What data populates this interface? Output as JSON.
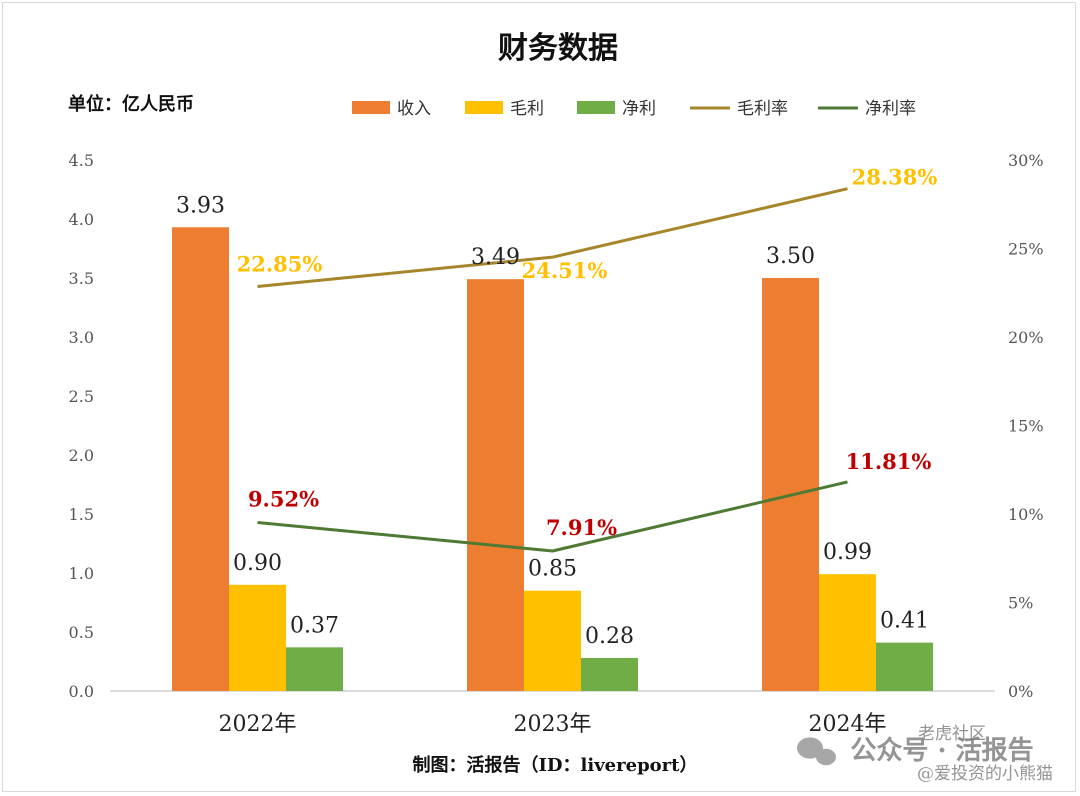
{
  "chart_data": {
    "type": "bar",
    "title": "财务数据",
    "unit_label": "单位：亿人民币",
    "categories": [
      "2022年",
      "2023年",
      "2024年"
    ],
    "y_left": {
      "min": 0,
      "max": 4.5,
      "step": 0.5,
      "ticks": [
        "0.0",
        "0.5",
        "1.0",
        "1.5",
        "2.0",
        "2.5",
        "3.0",
        "3.5",
        "4.0",
        "4.5"
      ]
    },
    "y_right": {
      "min": 0,
      "max": 30,
      "step": 5,
      "ticks": [
        "0%",
        "5%",
        "10%",
        "15%",
        "20%",
        "25%",
        "30%"
      ]
    },
    "bar_series": [
      {
        "name": "收入",
        "values": [
          3.93,
          3.49,
          3.5
        ],
        "labels": [
          "3.93",
          "3.49",
          "3.50"
        ],
        "color": "#ED7D31"
      },
      {
        "name": "毛利",
        "values": [
          0.9,
          0.85,
          0.99
        ],
        "labels": [
          "0.90",
          "0.85",
          "0.99"
        ],
        "color": "#FFC000"
      },
      {
        "name": "净利",
        "values": [
          0.37,
          0.28,
          0.41
        ],
        "labels": [
          "0.37",
          "0.28",
          "0.41"
        ],
        "color": "#70AD47"
      }
    ],
    "line_series": [
      {
        "name": "毛利率",
        "values": [
          22.85,
          24.51,
          28.38
        ],
        "labels": [
          "22.85%",
          "24.51%",
          "28.38%"
        ],
        "color": "#A5862A",
        "label_color": "#FFC000"
      },
      {
        "name": "净利率",
        "values": [
          9.52,
          7.91,
          11.81
        ],
        "labels": [
          "9.52%",
          "7.91%",
          "11.81%"
        ],
        "color": "#4E7A34",
        "label_color": "#C00000"
      }
    ],
    "grid": false,
    "legend_position": "top"
  },
  "footer": {
    "source": "制图：活报告（ID：livereport）"
  },
  "watermark": {
    "line1": "公众号 · 活报告",
    "line2": "老虎社区",
    "line3": "@爱投资的小熊猫"
  }
}
